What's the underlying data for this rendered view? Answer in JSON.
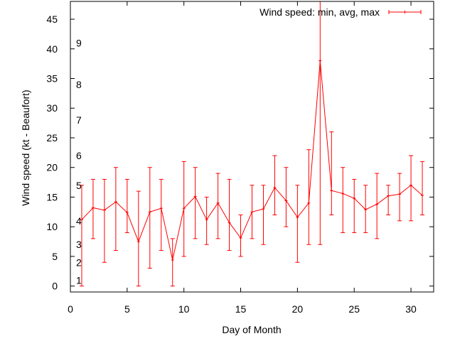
{
  "chart_data": {
    "type": "line",
    "title": "",
    "xlabel": "Day of Month",
    "ylabel": "Wind speed (kt - Beaufort)",
    "xlim": [
      0,
      32
    ],
    "ylim": [
      -1,
      48
    ],
    "x_ticks": [
      0,
      5,
      10,
      15,
      20,
      25,
      30
    ],
    "y_ticks": [
      0,
      5,
      10,
      15,
      20,
      25,
      30,
      35,
      40,
      45
    ],
    "grid": false,
    "legend_position": "top-right",
    "series": [
      {
        "name": "Wind speed: min, avg, max",
        "color": "#ff0000",
        "x": [
          1,
          2,
          3,
          4,
          5,
          6,
          7,
          8,
          9,
          10,
          11,
          12,
          13,
          14,
          15,
          16,
          17,
          18,
          19,
          20,
          21,
          22,
          23,
          24,
          25,
          26,
          27,
          28,
          29,
          30,
          31
        ],
        "avg": [
          11.2,
          13.2,
          12.8,
          14.2,
          12.4,
          7.5,
          12.5,
          13.1,
          4.4,
          13.1,
          15.1,
          11.2,
          14.0,
          10.7,
          8.1,
          12.5,
          13.0,
          16.6,
          14.4,
          11.6,
          14.0,
          38.0,
          16.1,
          15.6,
          14.8,
          12.9,
          13.8,
          15.2,
          15.5,
          17.0,
          15.3
        ],
        "min": [
          0,
          8,
          4,
          6,
          9,
          0,
          3,
          6,
          0,
          5,
          8,
          7,
          8,
          6,
          5,
          8,
          7,
          12,
          10,
          4,
          7,
          7,
          12,
          9,
          9,
          9,
          8,
          12,
          11,
          11,
          12
        ],
        "max": [
          17,
          18,
          18,
          20,
          18,
          16,
          20,
          18,
          8,
          21,
          20,
          15,
          19,
          18,
          12,
          17,
          17,
          22,
          20,
          17,
          23,
          48,
          26,
          20,
          18,
          17,
          19,
          17,
          19,
          22,
          21
        ]
      }
    ],
    "annotations": [
      {
        "text": "1",
        "y": 1
      },
      {
        "text": "2",
        "y": 4
      },
      {
        "text": "3",
        "y": 7
      },
      {
        "text": "4",
        "y": 11
      },
      {
        "text": "5",
        "y": 17
      },
      {
        "text": "6",
        "y": 22
      },
      {
        "text": "7",
        "y": 28
      },
      {
        "text": "8",
        "y": 34
      },
      {
        "text": "9",
        "y": 41
      }
    ]
  }
}
